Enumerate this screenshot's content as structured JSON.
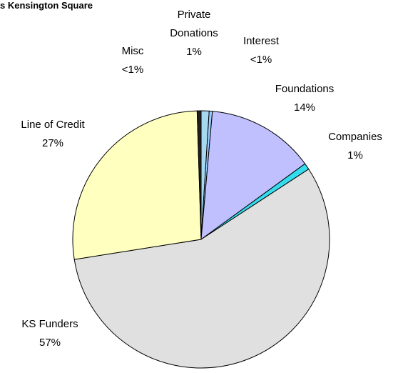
{
  "chart_data": {
    "type": "pie",
    "title": "s Kensington Square",
    "categories": [
      "Private Donations",
      "Interest",
      "Foundations",
      "Companies",
      "KS Funders",
      "Line of Credit",
      "Misc"
    ],
    "values": [
      1,
      0.4,
      13.6,
      0.8,
      56.7,
      27,
      0.5
    ],
    "value_labels": [
      "1%",
      "<1%",
      "14%",
      "1%",
      "57%",
      "27%",
      "<1%"
    ],
    "colors": [
      "#a6d8f0",
      "#99ccff",
      "#c0c0ff",
      "#33ddee",
      "#e0e0e0",
      "#ffffc0",
      "#202020"
    ]
  }
}
